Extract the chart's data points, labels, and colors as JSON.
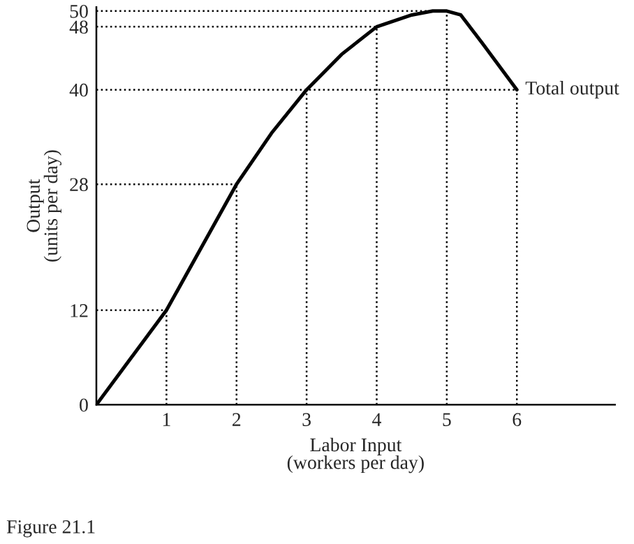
{
  "chart_data": {
    "type": "line",
    "xlabel": "Labor Input\n(workers per day)",
    "ylabel": "Output\n(units per day)",
    "x": [
      0,
      0.5,
      1,
      1.5,
      2,
      2.5,
      3,
      3.5,
      4,
      4.5,
      4.8,
      5,
      5.2,
      5.5,
      6
    ],
    "series": [
      {
        "name": "Total output",
        "color": "#000000",
        "values": [
          0,
          6,
          12,
          20,
          28,
          34.5,
          40,
          44.5,
          48,
          49.5,
          50,
          50,
          49.5,
          46,
          40
        ]
      }
    ],
    "xlim": [
      0,
      7.4
    ],
    "xticks": [
      1,
      2,
      3,
      4,
      5,
      6
    ],
    "ylim": [
      0,
      50.5
    ],
    "yticks": [
      0,
      12,
      28,
      40,
      48,
      50
    ],
    "ref_lines": [
      {
        "axis": "x",
        "value": 1,
        "line_style": "dotted",
        "color": "#000000"
      },
      {
        "axis": "x",
        "value": 2,
        "line_style": "dotted",
        "color": "#000000"
      },
      {
        "axis": "x",
        "value": 3,
        "line_style": "dotted",
        "color": "#000000"
      },
      {
        "axis": "x",
        "value": 4,
        "line_style": "dotted",
        "color": "#000000"
      },
      {
        "axis": "x",
        "value": 5,
        "line_style": "dotted",
        "color": "#000000"
      },
      {
        "axis": "x",
        "value": 6,
        "line_style": "dotted",
        "color": "#000000"
      },
      {
        "axis": "y",
        "value": 12,
        "line_style": "dotted",
        "color": "#000000"
      },
      {
        "axis": "y",
        "value": 28,
        "line_style": "dotted",
        "color": "#000000"
      },
      {
        "axis": "y",
        "value": 40,
        "line_style": "dotted",
        "color": "#000000"
      },
      {
        "axis": "y",
        "value": 48,
        "line_style": "dotted",
        "color": "#000000"
      },
      {
        "axis": "y",
        "value": 50,
        "line_style": "dotted",
        "color": "#000000"
      }
    ],
    "annotations": [
      "Figure 21.1"
    ],
    "grid": false,
    "legend": false,
    "marker": "none",
    "line_style": "solid"
  }
}
